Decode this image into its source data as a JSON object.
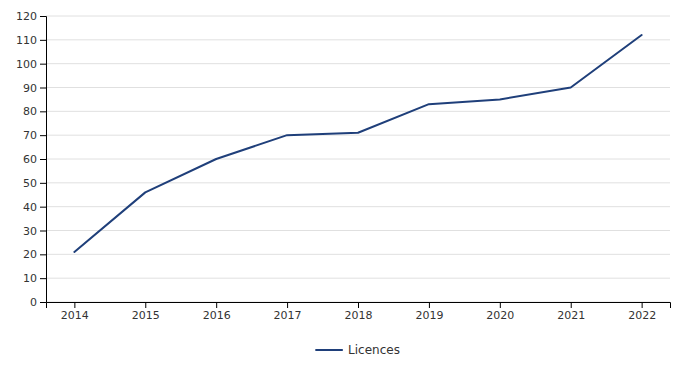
{
  "chart_data": {
    "type": "line",
    "x": [
      2014,
      2015,
      2016,
      2017,
      2018,
      2019,
      2020,
      2021,
      2022
    ],
    "series": [
      {
        "name": "Licences",
        "color": "#1f3f7a",
        "values": [
          21,
          46,
          60,
          70,
          71,
          83,
          85,
          90,
          112
        ]
      }
    ],
    "xlim": [
      2013.6,
      2022.4
    ],
    "xticks": [
      2014,
      2015,
      2016,
      2017,
      2018,
      2019,
      2020,
      2021,
      2022
    ],
    "ylim": [
      0,
      120
    ],
    "yticks": [
      0,
      10,
      20,
      30,
      40,
      50,
      60,
      70,
      80,
      90,
      100,
      110,
      120
    ],
    "grid": true,
    "legend": "bottom"
  }
}
